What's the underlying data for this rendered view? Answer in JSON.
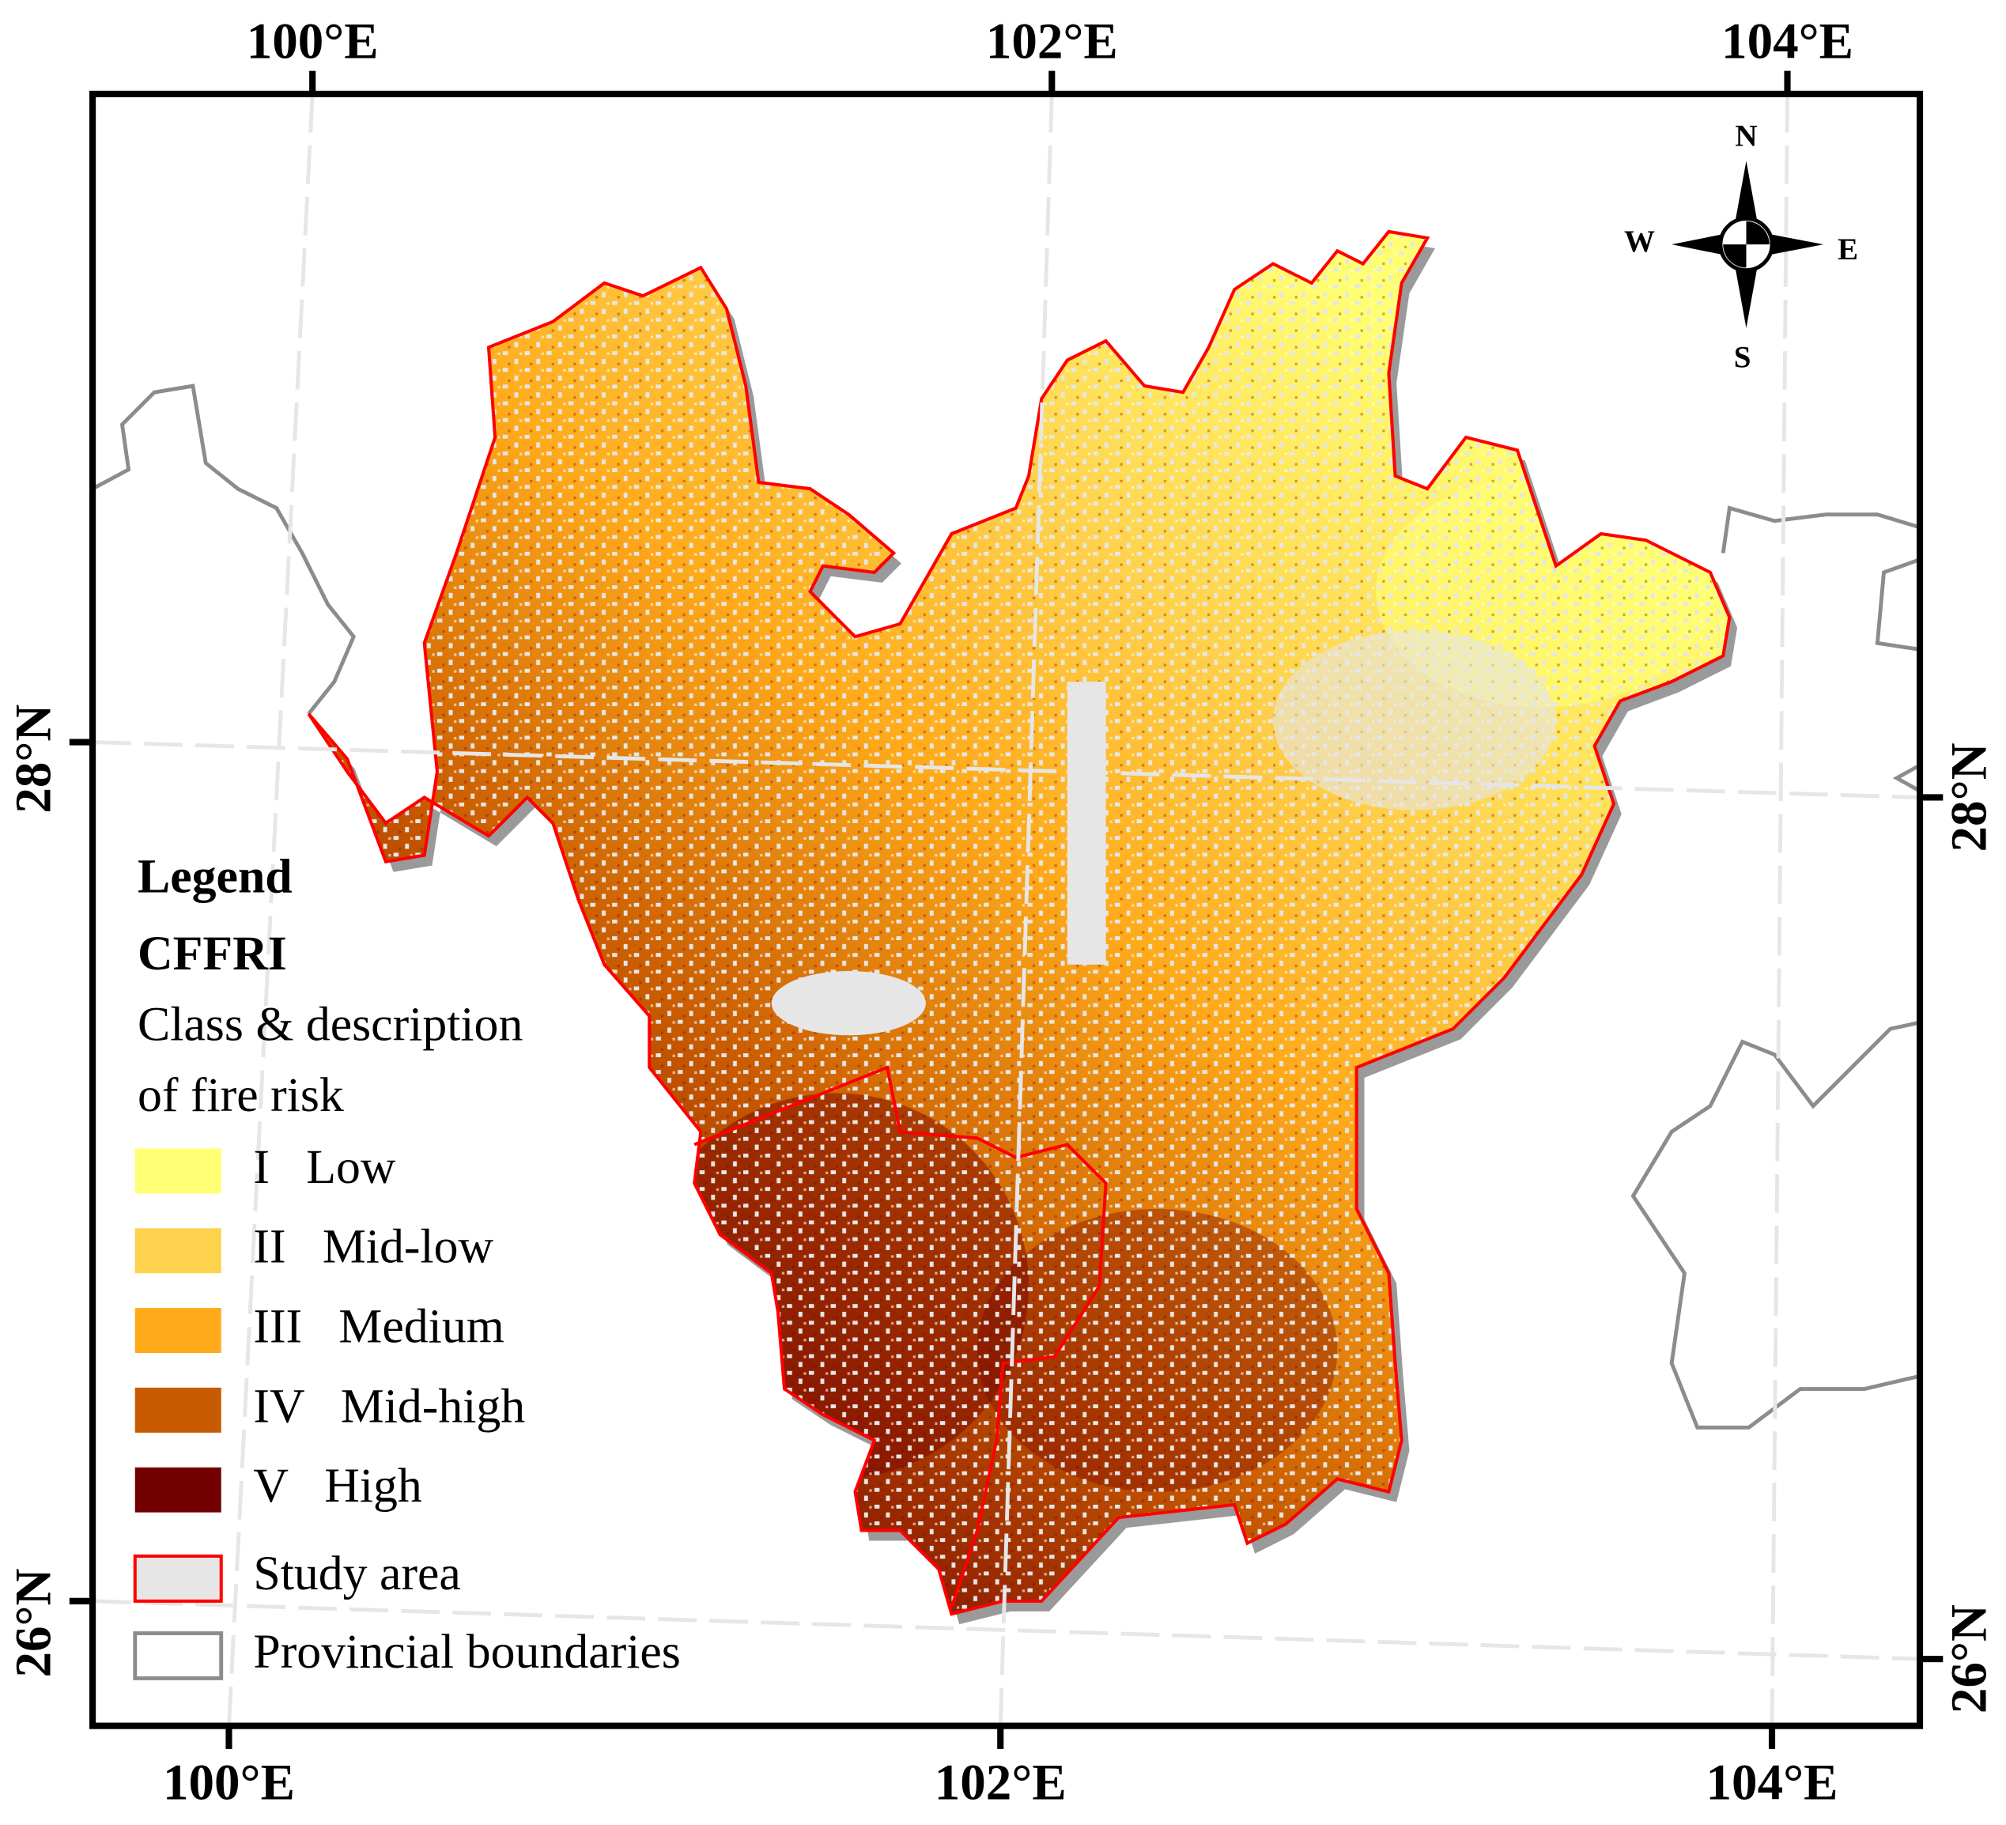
{
  "graticule": {
    "top": [
      "100°E",
      "102°E",
      "104°E"
    ],
    "bottom": [
      "100°E",
      "102°E",
      "104°E"
    ],
    "left": [
      "28°N",
      "26°N"
    ],
    "right": [
      "28°N",
      "26°N"
    ]
  },
  "compass": {
    "north": "N",
    "south": "S",
    "east": "E",
    "west": "W"
  },
  "legend": {
    "title": "Legend",
    "index": "CFFRI",
    "subtitle_lines": [
      "Class & description",
      "of fire risk"
    ],
    "classes": [
      {
        "label": "I   Low",
        "color": "#ffff73"
      },
      {
        "label": "II   Mid-low",
        "color": "#ffd24d"
      },
      {
        "label": "III   Medium",
        "color": "#ffaa1a"
      },
      {
        "label": "IV   Mid-high",
        "color": "#c85a00"
      },
      {
        "label": "V   High",
        "color": "#730000"
      }
    ],
    "study_area": "Study area",
    "boundaries": "Provincial boundaries"
  }
}
